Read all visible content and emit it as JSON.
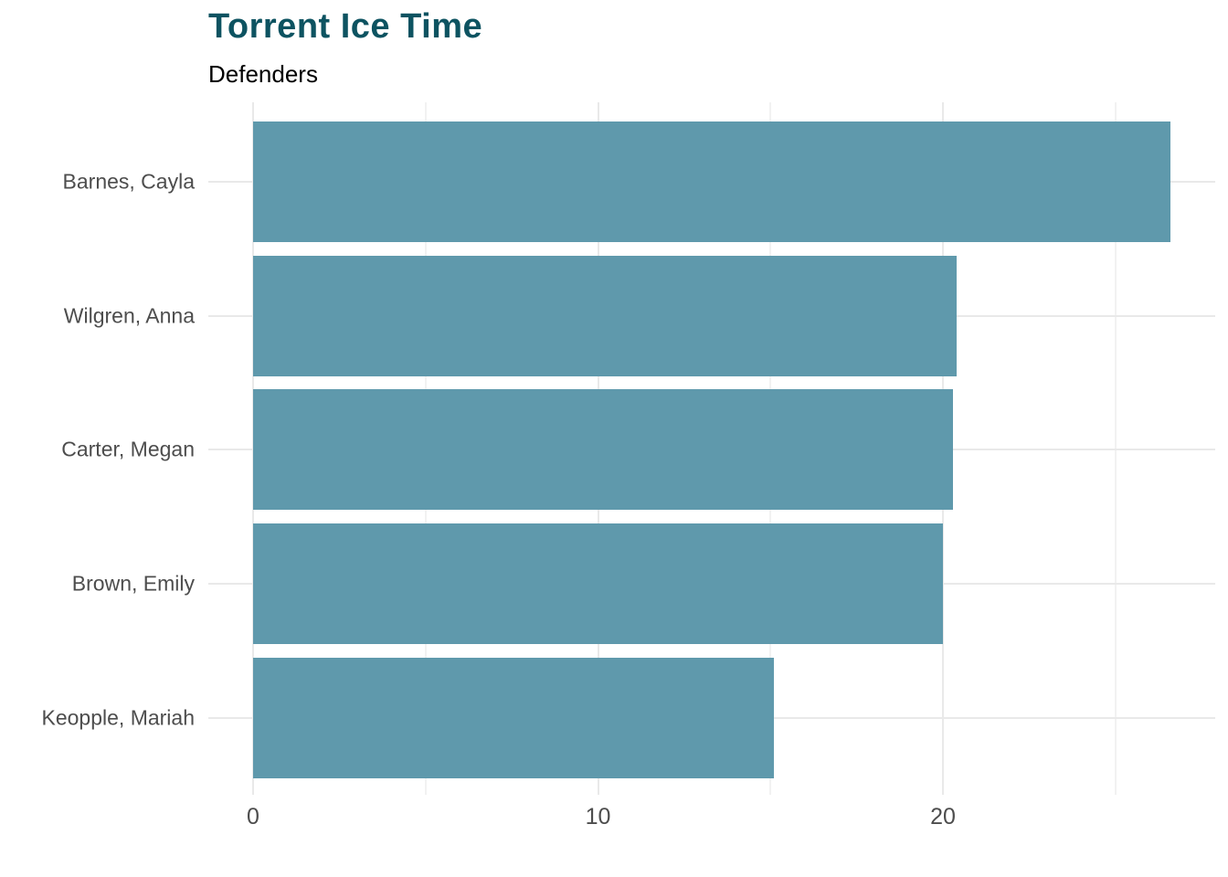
{
  "header": {
    "title": "Torrent Ice Time",
    "subtitle": "Defenders"
  },
  "chart_data": {
    "type": "bar",
    "orientation": "horizontal",
    "title": "Torrent Ice Time",
    "subtitle": "Defenders",
    "xlabel": "",
    "ylabel": "",
    "categories": [
      "Barnes, Cayla",
      "Wilgren, Anna",
      "Carter, Megan",
      "Brown, Emily",
      "Keopple, Mariah"
    ],
    "values": [
      26.6,
      20.4,
      20.3,
      20.0,
      15.1
    ],
    "xlim": [
      0,
      27.9
    ],
    "x_major_ticks": [
      0,
      10,
      20
    ],
    "x_major_tick_labels": [
      "0",
      "10",
      "20"
    ],
    "x_minor_ticks": [
      5,
      15,
      25
    ],
    "grid": "on",
    "legend": "none",
    "colors": {
      "bar_fill": "#5F99AC",
      "title_text": "#0D5361",
      "subtitle_text": "#000000",
      "axis_text": "#4D4D4D",
      "major_gridline": "#E9E9E9",
      "minor_gridline": "#F2F2F2",
      "background": "#FFFFFF"
    }
  }
}
